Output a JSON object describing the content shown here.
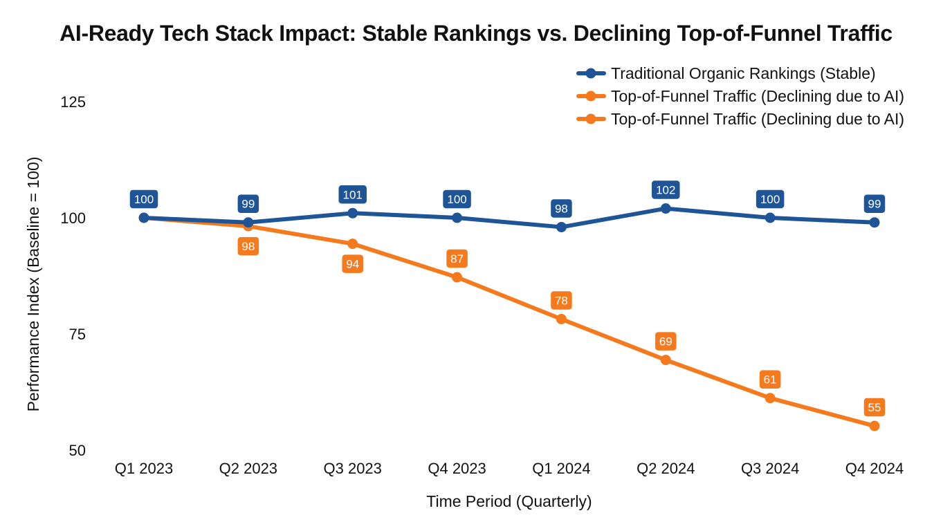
{
  "chart_data": {
    "type": "line",
    "title": "AI-Ready Tech Stack Impact: Stable Rankings vs. Declining Top-of-Funnel Traffic",
    "xlabel": "Time Period (Quarterly)",
    "ylabel": "Performance Index (Baseline = 100)",
    "categories": [
      "Q1 2023",
      "Q2 2023",
      "Q3 2023",
      "Q4 2023",
      "Q1 2024",
      "Q2 2024",
      "Q3 2024",
      "Q4 2024"
    ],
    "yticks": [
      50,
      75,
      100,
      125
    ],
    "ylim": [
      50,
      132
    ],
    "grid": false,
    "legend_position": "top-right",
    "series": [
      {
        "name": "Traditional Organic Rankings (Stable)",
        "color": "#1f5596",
        "values": [
          100,
          99,
          101,
          100,
          98,
          102,
          100,
          99
        ],
        "label_position": "above"
      },
      {
        "name": "Top-of-Funnel Traffic (Declining due to AI)",
        "color": "#f57a1e",
        "values": [
          100,
          98.2,
          94.4,
          87.2,
          78.2,
          69.4,
          61.2,
          55.2
        ],
        "labels": [
          "",
          "98",
          "94",
          "87",
          "78",
          "69",
          "61",
          "55"
        ],
        "label_position": "mixed"
      }
    ],
    "legend_entries": [
      {
        "label": "Traditional Organic Rankings (Stable)",
        "color": "#1f5596"
      },
      {
        "label": "Top-of-Funnel Traffic (Declining due to AI)",
        "color": "#f57a1e"
      },
      {
        "label": "Top-of-Funnel Traffic (Declining due to AI)",
        "color": "#f57a1e"
      }
    ]
  }
}
